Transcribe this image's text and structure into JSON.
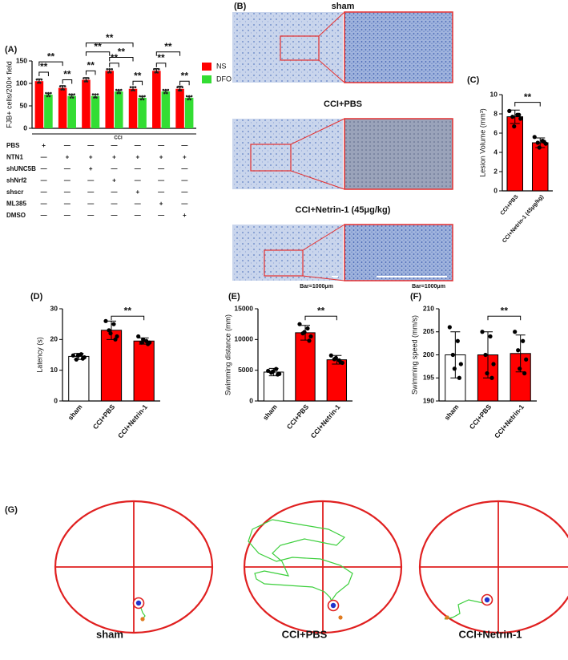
{
  "chart_data": [
    {
      "type": "grouped_bar",
      "panel": "(A)",
      "ylabel": "FJB+ cells/200× field",
      "series": [
        {
          "name": "NS",
          "color": "#ff0000",
          "values": [
            105,
            90,
            108,
            128,
            88,
            128,
            88
          ],
          "errors": [
            5,
            5,
            5,
            4,
            4,
            5,
            6
          ]
        },
        {
          "name": "DFO",
          "color": "#33dd33",
          "values": [
            75,
            72,
            72,
            82,
            68,
            82,
            68
          ],
          "errors": [
            2,
            2,
            4,
            2,
            2,
            2,
            2
          ]
        }
      ],
      "ylim": [
        0,
        150
      ],
      "yticks": [
        0,
        50,
        100,
        150
      ],
      "annotations": [
        "**",
        "**",
        "**",
        "**",
        "**",
        "**",
        "**",
        "**",
        "**",
        "**",
        "**",
        "**"
      ],
      "group_label": "CCI",
      "conditions": [
        {
          "label": "PBS",
          "signs": [
            "+",
            "—",
            "—",
            "—",
            "—",
            "—",
            "—"
          ]
        },
        {
          "label": "NTN1",
          "signs": [
            "—",
            "+",
            "+",
            "+",
            "+",
            "+",
            "+"
          ]
        },
        {
          "label": "shUNC5B",
          "signs": [
            "—",
            "—",
            "+",
            "—",
            "—",
            "—",
            "—"
          ]
        },
        {
          "label": "shNrf2",
          "signs": [
            "—",
            "—",
            "—",
            "+",
            "—",
            "—",
            "—"
          ]
        },
        {
          "label": "shscr",
          "signs": [
            "—",
            "—",
            "—",
            "—",
            "+",
            "—",
            "—"
          ]
        },
        {
          "label": "ML385",
          "signs": [
            "—",
            "—",
            "—",
            "—",
            "—",
            "+",
            "—"
          ]
        },
        {
          "label": "DMSO",
          "signs": [
            "—",
            "—",
            "—",
            "—",
            "—",
            "—",
            "+"
          ]
        }
      ]
    },
    {
      "type": "image_panel",
      "panel": "(B)",
      "titles": [
        "sham",
        "CCI+PBS",
        "CCI+Netrin-1 (45μg/kg)"
      ],
      "scale_labels": [
        "Bar=1000μm",
        "Bar=1000μm"
      ]
    },
    {
      "type": "bar",
      "panel": "(C)",
      "ylabel": "Lesion Volume (mm³)",
      "categories": [
        "CCI+PBS",
        "CCI+Netrin-1 (45μg/kg)"
      ],
      "values": [
        7.7,
        5.0
      ],
      "errors": [
        0.7,
        0.5
      ],
      "colors": [
        "#ff0000",
        "#ff0000"
      ],
      "points": [
        [
          8.3,
          7.9,
          7.7,
          7.5,
          6.7,
          7.9
        ],
        [
          5.6,
          5.2,
          5.0,
          4.9,
          4.5,
          5.1
        ]
      ],
      "ylim": [
        0,
        10
      ],
      "yticks": [
        0,
        2,
        4,
        6,
        8,
        10
      ],
      "annotations": [
        "**"
      ]
    },
    {
      "type": "bar",
      "panel": "(D)",
      "ylabel": "Latency (s)",
      "categories": [
        "sham",
        "CCI+PBS",
        "CCI+Netrin-1"
      ],
      "values": [
        14.5,
        23,
        19.5
      ],
      "errors": [
        1,
        3,
        1
      ],
      "colors": [
        "#ffffff",
        "#ff0000",
        "#ff0000"
      ],
      "points": [
        [
          14.8,
          15.2,
          13.5,
          14.2,
          14.8,
          13.8
        ],
        [
          26,
          25,
          23,
          21,
          22,
          20
        ],
        [
          21,
          19.5,
          19,
          19,
          20,
          18.5
        ]
      ],
      "ylim": [
        0,
        30
      ],
      "yticks": [
        0,
        10,
        20,
        30
      ],
      "annotations": [
        "**"
      ]
    },
    {
      "type": "bar",
      "panel": "(E)",
      "ylabel": "Swimming distance (mm)",
      "categories": [
        "sham",
        "CCI+PBS",
        "CCI+Netrin-1"
      ],
      "values": [
        4700,
        11100,
        6700
      ],
      "errors": [
        600,
        1200,
        700
      ],
      "colors": [
        "#ffffff",
        "#ff0000",
        "#ff0000"
      ],
      "points": [
        [
          4900,
          5200,
          4600,
          4400,
          4800,
          4300
        ],
        [
          12500,
          11800,
          11000,
          10500,
          11200,
          9800
        ],
        [
          7400,
          6600,
          6800,
          6200,
          7000,
          6300
        ]
      ],
      "ylim": [
        0,
        15000
      ],
      "yticks": [
        0,
        5000,
        10000,
        15000
      ],
      "annotations": [
        "**"
      ]
    },
    {
      "type": "bar",
      "panel": "(F)",
      "ylabel": "Swimming speed (mm/s)",
      "categories": [
        "sham",
        "CCI+PBS",
        "CCI+Netrin-1"
      ],
      "values": [
        200,
        200,
        200.3
      ],
      "errors": [
        5,
        5,
        4
      ],
      "colors": [
        "#ffffff",
        "#ff0000",
        "#ff0000"
      ],
      "points": [
        [
          206,
          203,
          200,
          198,
          197,
          195
        ],
        [
          205,
          204,
          200,
          198,
          196,
          195
        ],
        [
          205,
          203,
          201,
          199,
          197,
          196
        ]
      ],
      "ylim": [
        190,
        210
      ],
      "yticks": [
        190,
        195,
        200,
        205,
        210
      ],
      "annotations": [
        "**"
      ]
    },
    {
      "type": "track",
      "panel": "(G)",
      "labels": [
        "sham",
        "CCI+PBS",
        "CCI+Netrin-1"
      ]
    }
  ]
}
